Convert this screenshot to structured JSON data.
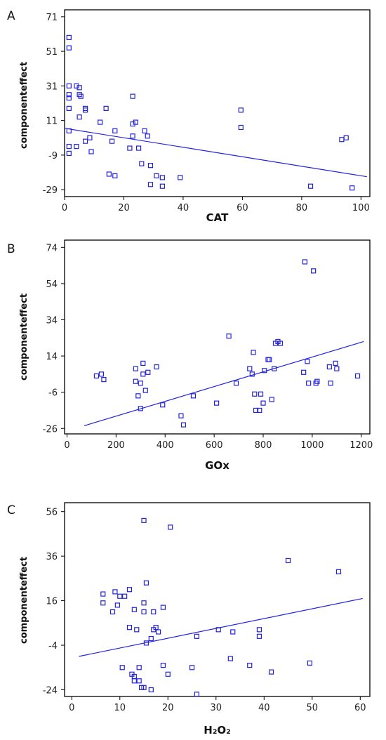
{
  "colors": {
    "series": "#2222dd",
    "axis": "#000000",
    "text": "#111111"
  },
  "chart_data": [
    {
      "panel": "A",
      "type": "scatter",
      "title": "",
      "xlabel": "CAT",
      "ylabel": "componenteffect",
      "xlim": [
        0,
        103
      ],
      "ylim": [
        -33,
        75
      ],
      "xticks": [
        0,
        20,
        40,
        60,
        80,
        100
      ],
      "yticks": [
        -29,
        -9,
        11,
        31,
        51,
        71
      ],
      "grid": false,
      "legend": "none",
      "points": [
        [
          1.5,
          59
        ],
        [
          1.5,
          53
        ],
        [
          1.5,
          31
        ],
        [
          1.5,
          26
        ],
        [
          1.5,
          24
        ],
        [
          1.5,
          18
        ],
        [
          1.5,
          5
        ],
        [
          1.5,
          -4
        ],
        [
          1.5,
          -8
        ],
        [
          4,
          31
        ],
        [
          4,
          -4
        ],
        [
          5,
          30
        ],
        [
          5,
          26
        ],
        [
          5,
          13
        ],
        [
          5.5,
          25
        ],
        [
          7,
          -1
        ],
        [
          7,
          17
        ],
        [
          7,
          18
        ],
        [
          8.5,
          1
        ],
        [
          9,
          -7
        ],
        [
          12,
          10
        ],
        [
          14,
          18
        ],
        [
          15,
          -20
        ],
        [
          17,
          -21
        ],
        [
          16,
          -1
        ],
        [
          17,
          5
        ],
        [
          22,
          -5
        ],
        [
          23,
          25
        ],
        [
          23,
          2
        ],
        [
          23,
          9
        ],
        [
          24,
          10
        ],
        [
          25,
          -5
        ],
        [
          26,
          -14
        ],
        [
          27,
          5
        ],
        [
          28,
          2
        ],
        [
          29,
          -26
        ],
        [
          29,
          -15
        ],
        [
          31,
          -21
        ],
        [
          33,
          -27
        ],
        [
          33,
          -22
        ],
        [
          39,
          -22
        ],
        [
          59.5,
          17
        ],
        [
          59.5,
          7
        ],
        [
          83,
          -27
        ],
        [
          93.5,
          0
        ],
        [
          95,
          1
        ],
        [
          97,
          -28
        ]
      ],
      "fit_line": {
        "x": [
          0,
          102
        ],
        "y": [
          6.5,
          -21.5
        ]
      }
    },
    {
      "panel": "B",
      "type": "scatter",
      "title": "",
      "xlabel": "GOx",
      "ylabel": "componenteffect",
      "xlim": [
        -10,
        1235
      ],
      "ylim": [
        -29,
        78
      ],
      "xticks": [
        0,
        200,
        400,
        600,
        800,
        1000,
        1200
      ],
      "yticks": [
        -26,
        -6,
        14,
        34,
        54,
        74
      ],
      "grid": false,
      "legend": "none",
      "points": [
        [
          120,
          3
        ],
        [
          140,
          4
        ],
        [
          150,
          1
        ],
        [
          280,
          7
        ],
        [
          280,
          0
        ],
        [
          290,
          -8
        ],
        [
          300,
          -1
        ],
        [
          300,
          -15
        ],
        [
          310,
          4
        ],
        [
          310,
          10
        ],
        [
          320,
          -5
        ],
        [
          330,
          5
        ],
        [
          365,
          8
        ],
        [
          390,
          -13
        ],
        [
          465,
          -19
        ],
        [
          475,
          -24
        ],
        [
          515,
          -8
        ],
        [
          610,
          -12
        ],
        [
          660,
          25
        ],
        [
          690,
          -1
        ],
        [
          745,
          7
        ],
        [
          755,
          4
        ],
        [
          760,
          16
        ],
        [
          765,
          -7
        ],
        [
          770,
          -16
        ],
        [
          785,
          -16
        ],
        [
          790,
          -7
        ],
        [
          800,
          -12
        ],
        [
          805,
          6
        ],
        [
          820,
          12
        ],
        [
          825,
          12
        ],
        [
          835,
          -10
        ],
        [
          845,
          7
        ],
        [
          850,
          21
        ],
        [
          860,
          22
        ],
        [
          870,
          21
        ],
        [
          965,
          5
        ],
        [
          970,
          66
        ],
        [
          980,
          11
        ],
        [
          985,
          -1
        ],
        [
          1005,
          61
        ],
        [
          1015,
          -1
        ],
        [
          1020,
          0
        ],
        [
          1070,
          8
        ],
        [
          1075,
          -1
        ],
        [
          1095,
          10
        ],
        [
          1100,
          7
        ],
        [
          1185,
          3
        ]
      ],
      "fit_line": {
        "x": [
          70,
          1210
        ],
        "y": [
          -24.5,
          22
        ]
      }
    },
    {
      "panel": "C",
      "type": "scatter",
      "title": "",
      "xlabel": "H₂O₂",
      "ylabel": "componenteffect",
      "xlim": [
        -1.5,
        62
      ],
      "ylim": [
        -27,
        60
      ],
      "xticks": [
        0,
        10,
        20,
        30,
        40,
        50,
        60
      ],
      "yticks": [
        -24,
        -4,
        16,
        36,
        56
      ],
      "grid": false,
      "legend": "none",
      "points": [
        [
          6.5,
          19
        ],
        [
          6.5,
          15
        ],
        [
          8.5,
          11
        ],
        [
          9,
          20
        ],
        [
          9.5,
          14
        ],
        [
          10,
          18
        ],
        [
          10.5,
          -14
        ],
        [
          11,
          18
        ],
        [
          12,
          21
        ],
        [
          12,
          4
        ],
        [
          12.5,
          -17
        ],
        [
          13,
          -18
        ],
        [
          13,
          -20
        ],
        [
          13,
          12
        ],
        [
          13.5,
          3
        ],
        [
          14,
          -14
        ],
        [
          14,
          -20
        ],
        [
          14.5,
          -23
        ],
        [
          15,
          52
        ],
        [
          15,
          15
        ],
        [
          15,
          11
        ],
        [
          15,
          -23
        ],
        [
          15.5,
          -3
        ],
        [
          15.5,
          24
        ],
        [
          16.5,
          -24
        ],
        [
          16.5,
          -1
        ],
        [
          17,
          3
        ],
        [
          17,
          11
        ],
        [
          17.5,
          4
        ],
        [
          18,
          2
        ],
        [
          19,
          -13
        ],
        [
          19,
          13
        ],
        [
          20,
          -17
        ],
        [
          20.5,
          49
        ],
        [
          25,
          -14
        ],
        [
          26,
          -26
        ],
        [
          26,
          0
        ],
        [
          30.5,
          3
        ],
        [
          33,
          -10
        ],
        [
          33.5,
          2
        ],
        [
          37,
          -13
        ],
        [
          39,
          0
        ],
        [
          39,
          3
        ],
        [
          41.5,
          -16
        ],
        [
          45,
          34
        ],
        [
          49.5,
          -12
        ],
        [
          55.5,
          29
        ]
      ],
      "fit_line": {
        "x": [
          1.5,
          60.5
        ],
        "y": [
          -9,
          17
        ]
      }
    }
  ],
  "panels_layout": [
    "A",
    "B",
    "C"
  ]
}
